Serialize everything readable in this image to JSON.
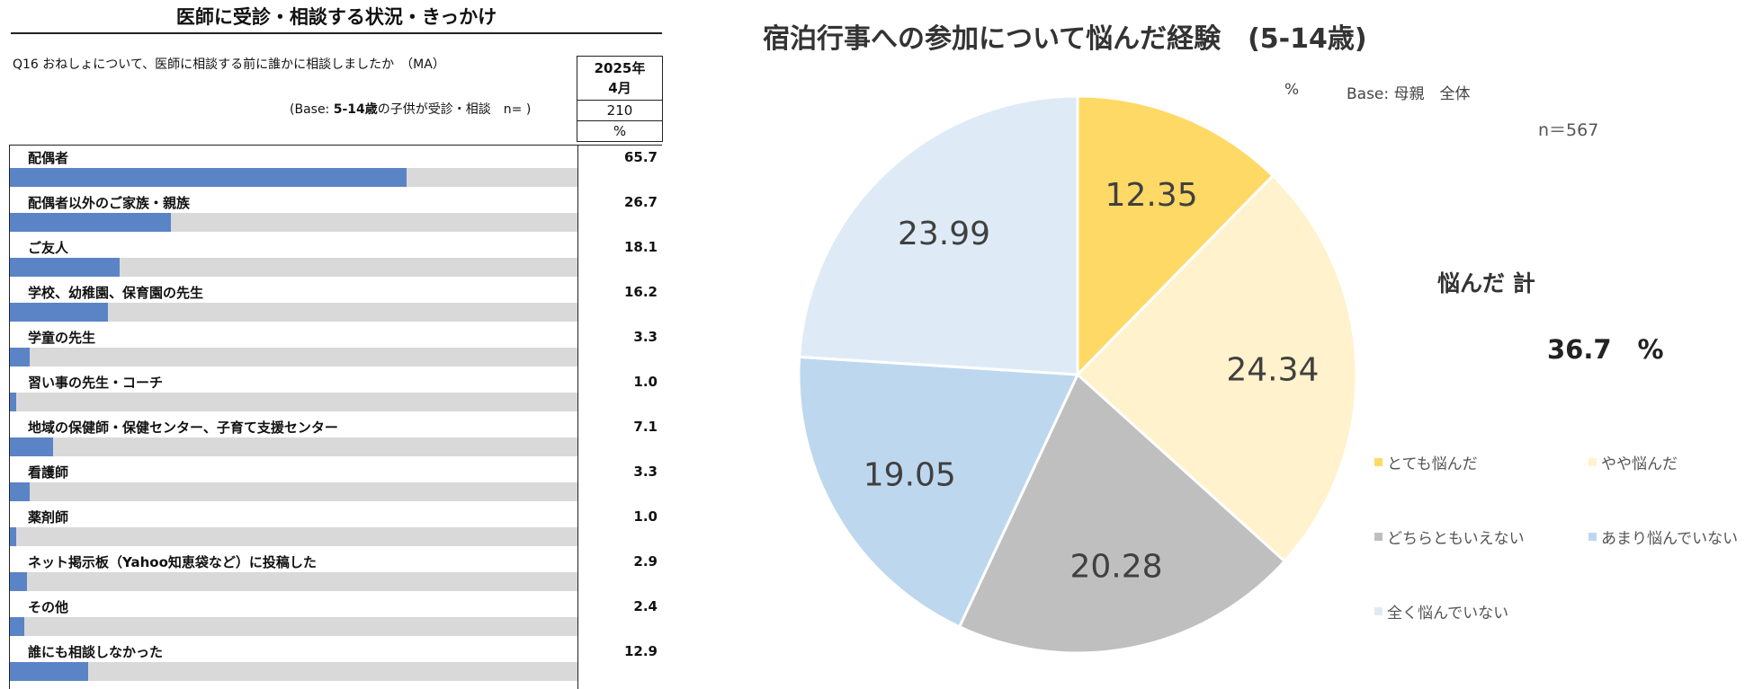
{
  "left_panel": {
    "title": "医師に受診・相談する状況・きっかけ",
    "question": "Q16 おねしょについて、医師に相談する前に誰かに相談しましたか　（MA）",
    "base_prefix": "(Base: ",
    "base_bold": "5-14歳",
    "base_suffix": "の子供が受診・相談　n= )",
    "column_date_line1": "2025年",
    "column_date_line2": "4月",
    "n": "210",
    "unit": "%",
    "bar_color": "#5b84c6",
    "track_color": "#d9d9d9"
  },
  "chart_data": [
    {
      "type": "bar",
      "orientation": "horizontal",
      "categories": [
        "配偶者",
        "配偶者以外のご家族・親族",
        "ご友人",
        "学校、幼稚園、保育園の先生",
        "学童の先生",
        "習い事の先生・コーチ",
        "地域の保健師・保健センター、子育て支援センター",
        "看護師",
        "薬剤師",
        "ネット掲示板（Yahoo知恵袋など）に投稿した",
        "その他",
        "誰にも相談しなかった"
      ],
      "values": [
        65.7,
        26.7,
        18.1,
        16.2,
        3.3,
        1.0,
        7.1,
        3.3,
        1.0,
        2.9,
        2.4,
        12.9
      ],
      "value_labels": [
        "65.7",
        "26.7",
        "18.1",
        "16.2",
        "3.3",
        "1.0",
        "7.1",
        "3.3",
        "1.0",
        "2.9",
        "2.4",
        "12.9"
      ]
    },
    {
      "type": "pie",
      "title": "宿泊行事への参加について悩んだ経験　(5-14歳)",
      "unit_label": "%",
      "base_label": "Base: 母親　全体",
      "n_label": "n＝567",
      "slices": [
        {
          "label": "とても悩んだ",
          "value": 12.35,
          "value_label": "12.35",
          "color": "#ffd966"
        },
        {
          "label": "やや悩んだ",
          "value": 24.34,
          "value_label": "24.34",
          "color": "#fff2cc"
        },
        {
          "label": "どちらともいえない",
          "value": 20.28,
          "value_label": "20.28",
          "color": "#bfbfbf"
        },
        {
          "label": "あまり悩んでいない",
          "value": 19.05,
          "value_label": "19.05",
          "color": "#bdd7ee"
        },
        {
          "label": "全く悩んでいない",
          "value": 23.99,
          "value_label": "23.99",
          "color": "#deebf7"
        }
      ],
      "summary_label": "悩んだ 計",
      "summary_value": "36.7　%",
      "label_color": "#404040"
    }
  ]
}
